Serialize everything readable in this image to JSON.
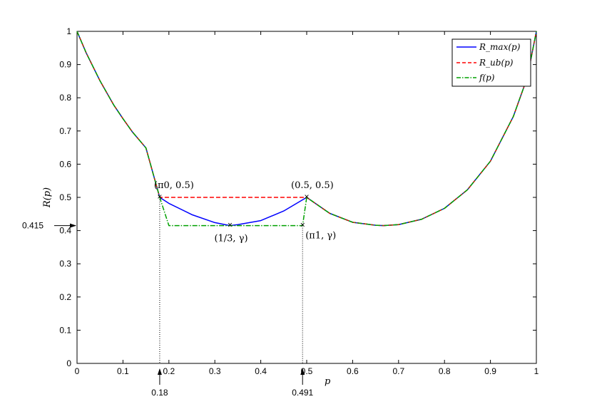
{
  "chart_data": {
    "type": "line",
    "xlabel": "p",
    "ylabel": "R(p)",
    "xlim": [
      0,
      1
    ],
    "ylim": [
      0,
      1
    ],
    "xticks": [
      "0",
      "0.1",
      "0.2",
      "0.3",
      "0.4",
      "0.5",
      "0.6",
      "0.7",
      "0.8",
      "0.9",
      "1"
    ],
    "yticks": [
      "0",
      "0.1",
      "0.2",
      "0.3",
      "0.4",
      "0.5",
      "0.6",
      "0.7",
      "0.8",
      "0.9",
      "1"
    ],
    "grid": false,
    "legend_position": "top-right",
    "series": [
      {
        "name": "R_max(p)",
        "color": "#0000ff",
        "style": "solid",
        "x": [
          0,
          0.02,
          0.05,
          0.08,
          0.1,
          0.12,
          0.15,
          0.18,
          0.2,
          0.25,
          0.3,
          0.333,
          0.35,
          0.4,
          0.45,
          0.5,
          0.55,
          0.6,
          0.65,
          0.667,
          0.7,
          0.75,
          0.8,
          0.85,
          0.9,
          0.95,
          0.98,
          1
        ],
        "y": [
          1,
          0.935,
          0.851,
          0.778,
          0.737,
          0.698,
          0.649,
          0.5,
          0.482,
          0.448,
          0.424,
          0.415,
          0.418,
          0.43,
          0.459,
          0.5,
          0.452,
          0.425,
          0.416,
          0.415,
          0.418,
          0.434,
          0.467,
          0.523,
          0.609,
          0.744,
          0.86,
          1
        ]
      },
      {
        "name": "R_ub(p)",
        "color": "#ff0000",
        "style": "dashed",
        "x": [
          0,
          0.02,
          0.05,
          0.08,
          0.1,
          0.12,
          0.15,
          0.18,
          0.2,
          0.25,
          0.3,
          0.35,
          0.4,
          0.45,
          0.5,
          0.55,
          0.6,
          0.65,
          0.667,
          0.7,
          0.75,
          0.8,
          0.85,
          0.9,
          0.95,
          0.98,
          1
        ],
        "y": [
          1,
          0.935,
          0.851,
          0.778,
          0.737,
          0.698,
          0.649,
          0.5,
          0.5,
          0.5,
          0.5,
          0.5,
          0.5,
          0.5,
          0.5,
          0.452,
          0.425,
          0.416,
          0.415,
          0.418,
          0.434,
          0.467,
          0.523,
          0.609,
          0.744,
          0.86,
          1
        ]
      },
      {
        "name": "f(p)",
        "color": "#00a000",
        "style": "dashdot",
        "x": [
          0,
          0.02,
          0.05,
          0.08,
          0.1,
          0.12,
          0.15,
          0.18,
          0.2,
          0.25,
          0.3,
          0.35,
          0.4,
          0.45,
          0.491,
          0.5,
          0.55,
          0.6,
          0.65,
          0.667,
          0.7,
          0.75,
          0.8,
          0.85,
          0.9,
          0.95,
          0.98,
          1
        ],
        "y": [
          1,
          0.935,
          0.851,
          0.778,
          0.737,
          0.698,
          0.649,
          0.5,
          0.415,
          0.415,
          0.415,
          0.415,
          0.415,
          0.415,
          0.415,
          0.5,
          0.452,
          0.425,
          0.416,
          0.415,
          0.418,
          0.434,
          0.467,
          0.523,
          0.609,
          0.744,
          0.86,
          1
        ]
      }
    ],
    "legend": [
      "R_max(p)",
      "R_ub(p)",
      "f(p)"
    ],
    "annotations": [
      {
        "text": "(π0, 0.5)",
        "x": 0.18,
        "y": 0.5
      },
      {
        "text": "(0.5, 0.5)",
        "x": 0.5,
        "y": 0.5
      },
      {
        "text": "(1/3, γ)",
        "x": 0.333,
        "y": 0.415
      },
      {
        "text": "(π1, γ)",
        "x": 0.491,
        "y": 0.415
      }
    ],
    "vertical_markers": [
      {
        "label": "0.18",
        "x": 0.18,
        "y": 0.5
      },
      {
        "label": "0.491",
        "x": 0.491,
        "y": 0.415
      }
    ],
    "horizontal_marker": {
      "label": "0.415",
      "y": 0.415
    }
  }
}
